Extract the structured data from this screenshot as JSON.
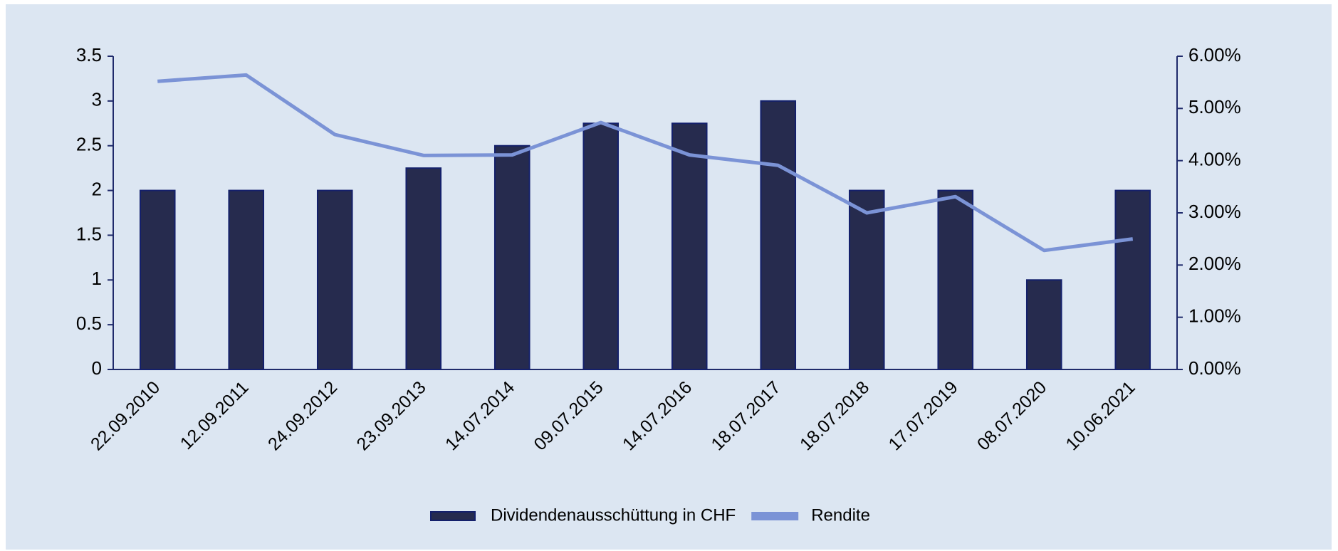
{
  "chart_data": {
    "type": "bar",
    "categories": [
      "22.09.2010",
      "12.09.2011",
      "24.09.2012",
      "23.09.2013",
      "14.07.2014",
      "09.07.2015",
      "14.07.2016",
      "18.07.2017",
      "18.07.2018",
      "17.07.2019",
      "08.07.2020",
      "10.06.2021"
    ],
    "series": [
      {
        "name": "Dividendenausschüttung in CHF",
        "type": "bar",
        "color": "#262b4e",
        "values": [
          2,
          2,
          2,
          2.25,
          2.5,
          2.75,
          2.75,
          3,
          2,
          2,
          1,
          2
        ]
      },
      {
        "name": "Rendite",
        "type": "line",
        "axis": "y2",
        "color": "#7b93d6",
        "values": [
          5.52,
          5.64,
          4.5,
          4.1,
          4.11,
          4.73,
          4.11,
          3.91,
          3.0,
          3.31,
          2.28,
          2.5
        ]
      }
    ],
    "ylim": [
      0,
      3.5
    ],
    "yticks": [
      0,
      0.5,
      1,
      1.5,
      2,
      2.5,
      3,
      3.5
    ],
    "y2lim": [
      0,
      6
    ],
    "y2ticks": [
      {
        "value": 0,
        "label": "0.00%"
      },
      {
        "value": 1,
        "label": "1.00%"
      },
      {
        "value": 2,
        "label": "2.00%"
      },
      {
        "value": 3,
        "label": "3.00%"
      },
      {
        "value": 4,
        "label": "4.00%"
      },
      {
        "value": 5,
        "label": "5.00%"
      },
      {
        "value": 6,
        "label": "6.00%"
      }
    ],
    "legend": "bottom"
  }
}
